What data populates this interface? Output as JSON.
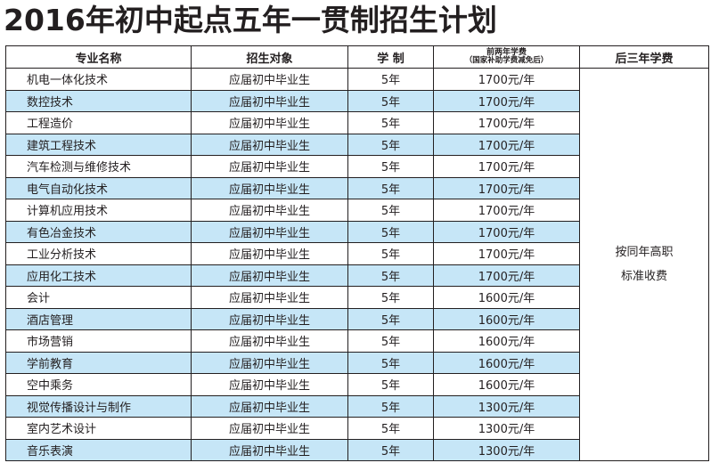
{
  "title": "2016年初中起点五年一贯制招生计划",
  "table": {
    "headers": {
      "major": "专业名称",
      "target": "招生对象",
      "duration": "学 制",
      "first_two_fee_line1": "前两年学费",
      "first_two_fee_line2": "（国家补助学费减免后）",
      "later_three_fee": "后三年学费"
    },
    "later_fee_line1": "按同年高职",
    "later_fee_line2": "标准收费",
    "rows": [
      {
        "major": "机电一体化技术",
        "target": "应届初中毕业生",
        "duration": "5年",
        "fee": "1700元/年"
      },
      {
        "major": "数控技术",
        "target": "应届初中毕业生",
        "duration": "5年",
        "fee": "1700元/年"
      },
      {
        "major": "工程造价",
        "target": "应届初中毕业生",
        "duration": "5年",
        "fee": "1700元/年"
      },
      {
        "major": "建筑工程技术",
        "target": "应届初中毕业生",
        "duration": "5年",
        "fee": "1700元/年"
      },
      {
        "major": "汽车检测与维修技术",
        "target": "应届初中毕业生",
        "duration": "5年",
        "fee": "1700元/年"
      },
      {
        "major": "电气自动化技术",
        "target": "应届初中毕业生",
        "duration": "5年",
        "fee": "1700元/年"
      },
      {
        "major": "计算机应用技术",
        "target": "应届初中毕业生",
        "duration": "5年",
        "fee": "1700元/年"
      },
      {
        "major": "有色冶金技术",
        "target": "应届初中毕业生",
        "duration": "5年",
        "fee": "1700元/年"
      },
      {
        "major": "工业分析技术",
        "target": "应届初中毕业生",
        "duration": "5年",
        "fee": "1700元/年"
      },
      {
        "major": "应用化工技术",
        "target": "应届初中毕业生",
        "duration": "5年",
        "fee": "1700元/年"
      },
      {
        "major": "会计",
        "target": "应届初中毕业生",
        "duration": "5年",
        "fee": "1600元/年"
      },
      {
        "major": "酒店管理",
        "target": "应届初中毕业生",
        "duration": "5年",
        "fee": "1600元/年"
      },
      {
        "major": "市场营销",
        "target": "应届初中毕业生",
        "duration": "5年",
        "fee": "1600元/年"
      },
      {
        "major": "学前教育",
        "target": "应届初中毕业生",
        "duration": "5年",
        "fee": "1600元/年"
      },
      {
        "major": "空中乘务",
        "target": "应届初中毕业生",
        "duration": "5年",
        "fee": "1600元/年"
      },
      {
        "major": "视觉传播设计与制作",
        "target": "应届初中毕业生",
        "duration": "5年",
        "fee": "1300元/年"
      },
      {
        "major": "室内艺术设计",
        "target": "应届初中毕业生",
        "duration": "5年",
        "fee": "1300元/年"
      },
      {
        "major": "音乐表演",
        "target": "应届初中毕业生",
        "duration": "5年",
        "fee": "1300元/年"
      }
    ]
  },
  "colors": {
    "shaded_row": "#c6e6f7",
    "border": "#231f20"
  }
}
